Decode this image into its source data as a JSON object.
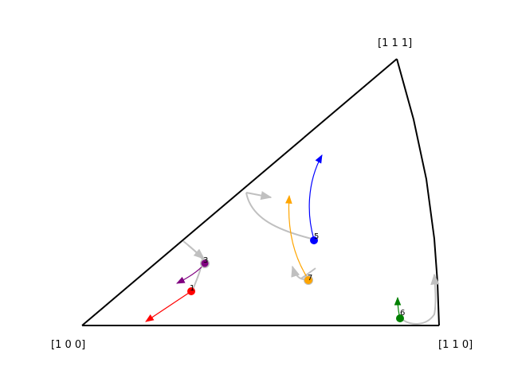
{
  "figure": {
    "type": "inverse pole figure",
    "triangle_color": "#000000",
    "corners": [
      {
        "id": "c100",
        "label": "[1 0 0]"
      },
      {
        "id": "c110",
        "label": "[1 1 0]"
      },
      {
        "id": "c111",
        "label": "[1 1 1]"
      }
    ],
    "grains": [
      {
        "id": "1",
        "label": "1",
        "color": "#ff0000"
      },
      {
        "id": "3",
        "label": "3",
        "color": "#800080"
      },
      {
        "id": "5",
        "label": "5",
        "color": "#0000ff"
      },
      {
        "id": "6",
        "label": "6",
        "color": "#008000"
      },
      {
        "id": "7",
        "label": "7",
        "color": "#ffa500"
      }
    ],
    "ghost_color": "#c0c0c0"
  }
}
